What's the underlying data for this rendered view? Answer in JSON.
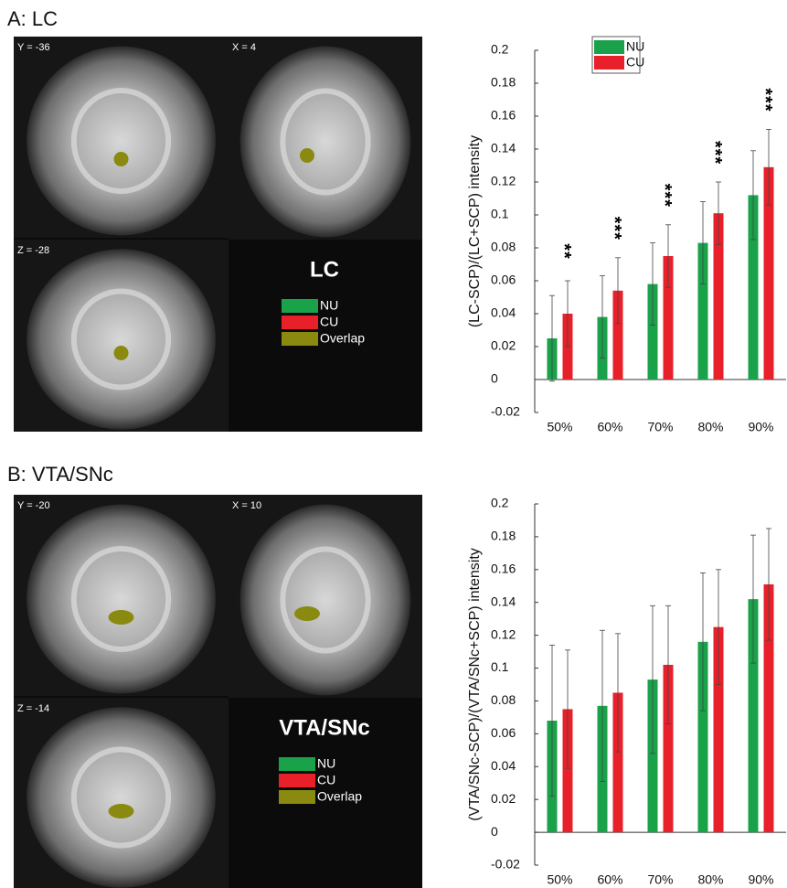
{
  "chart_data": [
    {
      "type": "bar",
      "ylabel": "(LC-SCP)/(LC+SCP) intensity",
      "categories": [
        "50%",
        "60%",
        "70%",
        "80%",
        "90%"
      ],
      "series": [
        {
          "name": "NU",
          "color": "#1aa24a",
          "values": [
            0.025,
            0.038,
            0.058,
            0.083,
            0.112
          ],
          "errors": [
            0.026,
            0.025,
            0.025,
            0.025,
            0.027
          ]
        },
        {
          "name": "CU",
          "color": "#e8202a",
          "values": [
            0.04,
            0.054,
            0.075,
            0.101,
            0.129
          ],
          "errors": [
            0.02,
            0.02,
            0.019,
            0.019,
            0.023
          ]
        }
      ],
      "annotations": [
        "**",
        "***",
        "***",
        "***",
        "***"
      ],
      "ylim": [
        -0.02,
        0.2
      ],
      "yticks": [
        -0.02,
        0,
        0.02,
        0.04,
        0.06,
        0.08,
        0.1,
        0.12,
        0.14,
        0.16,
        0.18,
        0.2
      ],
      "legend": "top"
    },
    {
      "type": "bar",
      "ylabel": "(VTA/SNc-SCP)/(VTA/SNc+SCP) intensity",
      "categories": [
        "50%",
        "60%",
        "70%",
        "80%",
        "90%"
      ],
      "series": [
        {
          "color": "#1aa24a",
          "values": [
            0.068,
            0.077,
            0.093,
            0.116,
            0.142
          ],
          "errors": [
            0.046,
            0.046,
            0.045,
            0.042,
            0.039
          ]
        },
        {
          "color": "#e8202a",
          "values": [
            0.075,
            0.085,
            0.102,
            0.125,
            0.151
          ],
          "errors": [
            0.036,
            0.036,
            0.036,
            0.035,
            0.034
          ]
        }
      ],
      "ylim": [
        -0.02,
        0.2
      ],
      "yticks": [
        -0.02,
        0,
        0.02,
        0.04,
        0.06,
        0.08,
        0.1,
        0.12,
        0.14,
        0.16,
        0.18,
        0.2
      ]
    }
  ],
  "panels": [
    {
      "title": "A: LC",
      "slices": [
        "Y = -36",
        "X = 4",
        "Z = -28"
      ],
      "roi": "LC",
      "legend": [
        {
          "name": "NU",
          "color": "#1aa24a"
        },
        {
          "name": "CU",
          "color": "#e8202a"
        },
        {
          "name": "Overlap",
          "color": "#8a8a10"
        }
      ]
    },
    {
      "title": "B: VTA/SNc",
      "slices": [
        "Y = -20",
        "X = 10",
        "Z = -14"
      ],
      "roi": "VTA/SNc",
      "legend": [
        {
          "name": "NU",
          "color": "#1aa24a"
        },
        {
          "name": "CU",
          "color": "#e8202a"
        },
        {
          "name": "Overlap",
          "color": "#8a8a10"
        }
      ]
    }
  ]
}
